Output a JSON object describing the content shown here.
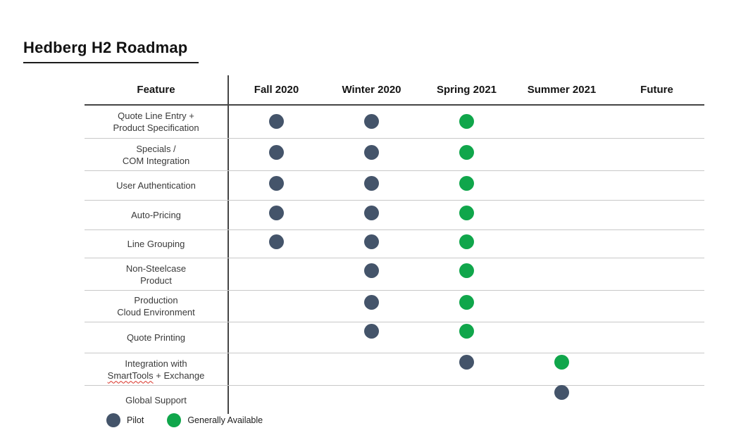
{
  "page": {
    "title": "Hedberg H2 Roadmap"
  },
  "colors": {
    "pilot": "#44546a",
    "generally_available": "#10a64b",
    "header_line": "#454545",
    "row_divider": "#c8c8c8",
    "misspelling_underline": "#d93025"
  },
  "table": {
    "feature_header": "Feature",
    "period_headers": [
      "Fall 2020",
      "Winter 2020",
      "Spring 2021",
      "Summer 2021",
      "Future"
    ],
    "rows": [
      {
        "feature_lines": [
          "Quote Line Entry +",
          "Product Specification"
        ],
        "cells": [
          "pilot",
          "pilot",
          "ga",
          "",
          ""
        ]
      },
      {
        "feature_lines": [
          "Specials /",
          "COM Integration"
        ],
        "cells": [
          "pilot",
          "pilot",
          "ga",
          "",
          ""
        ]
      },
      {
        "feature_lines": [
          "User Authentication"
        ],
        "cells": [
          "pilot",
          "pilot",
          "ga",
          "",
          ""
        ]
      },
      {
        "feature_lines": [
          "Auto-Pricing"
        ],
        "cells": [
          "pilot",
          "pilot",
          "ga",
          "",
          ""
        ]
      },
      {
        "feature_lines": [
          "Line Grouping"
        ],
        "cells": [
          "pilot",
          "pilot",
          "ga",
          "",
          ""
        ]
      },
      {
        "feature_lines": [
          "Non-Steelcase",
          "Product"
        ],
        "cells": [
          "",
          "pilot",
          "ga",
          "",
          ""
        ]
      },
      {
        "feature_lines": [
          "Production",
          "Cloud Environment"
        ],
        "cells": [
          "",
          "pilot",
          "ga",
          "",
          ""
        ]
      },
      {
        "feature_lines": [
          "Quote Printing"
        ],
        "cells": [
          "",
          "pilot",
          "ga",
          "",
          ""
        ]
      },
      {
        "feature_lines": [
          "Integration with",
          "SmartTools + Exchange"
        ],
        "misspelled_word": "SmartTools",
        "cells": [
          "",
          "",
          "pilot",
          "ga",
          ""
        ]
      },
      {
        "feature_lines": [
          "Global Support"
        ],
        "cells": [
          "",
          "",
          "",
          "pilot",
          ""
        ]
      }
    ]
  },
  "legend": [
    {
      "status": "pilot",
      "label": "Pilot"
    },
    {
      "status": "ga",
      "label": "Generally Available"
    }
  ]
}
